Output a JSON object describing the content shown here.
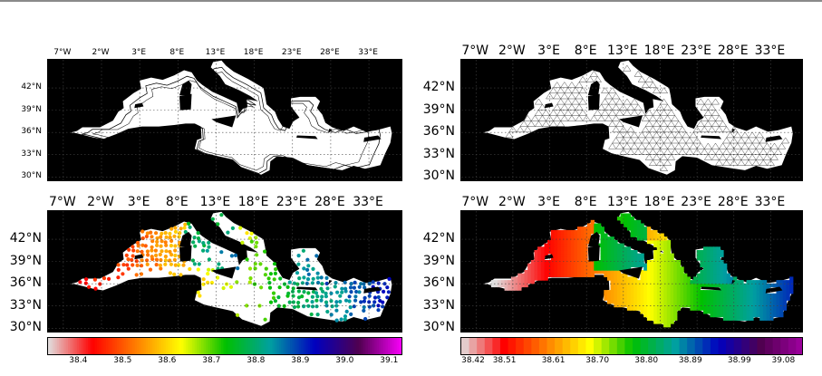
{
  "lon_ticks": [
    "7°W",
    "2°W",
    "3°E",
    "8°E",
    "13°E",
    "18°E",
    "23°E",
    "28°E",
    "33°E"
  ],
  "lat_ticks": [
    "42°N",
    "39°N",
    "36°N",
    "33°N",
    "30°N"
  ],
  "colors": {
    "land": "#000000",
    "sea": "#ffffff",
    "grid": "#444444",
    "frame": "#8a8a8a"
  },
  "chart_data": [
    {
      "type": "map",
      "panel": "top-left",
      "content": "Mediterranean basin outline with coastline and isobath contours"
    },
    {
      "type": "map",
      "panel": "top-right",
      "content": "Mediterranean basin with triangular finite-element mesh"
    },
    {
      "type": "scatter",
      "panel": "bottom-left",
      "content": "salinity observations plotted as colored dots",
      "colorbar": {
        "ticks": [
          "38.4",
          "38.5",
          "38.6",
          "38.7",
          "38.8",
          "38.9",
          "39.0",
          "39.1"
        ],
        "tick_values": [
          38.4,
          38.5,
          38.6,
          38.7,
          38.8,
          38.9,
          39.0,
          39.1
        ],
        "vmin": 38.33,
        "vmax": 39.13,
        "colormap": [
          "#e0e0e0",
          "#ff0000",
          "#ff8000",
          "#ffff00",
          "#00c000",
          "#00a0a0",
          "#0000c0",
          "#500050",
          "#ff00ff"
        ]
      }
    },
    {
      "type": "heatmap",
      "panel": "bottom-right",
      "content": "analysed salinity field (filled contours)",
      "colorbar": {
        "ticks": [
          "38.42",
          "38.51",
          "38.61",
          "38.70",
          "38.80",
          "38.89",
          "38.99",
          "39.08"
        ],
        "tick_values": [
          38.42,
          38.51,
          38.61,
          38.7,
          38.8,
          38.89,
          38.99,
          39.08
        ],
        "vmin": 38.42,
        "vmax": 39.12,
        "colormap": [
          "#e0e0e0",
          "#ff0000",
          "#ff8000",
          "#ffff00",
          "#00c000",
          "#00a0a0",
          "#0000c0",
          "#500050",
          "#a000a0"
        ]
      }
    }
  ]
}
